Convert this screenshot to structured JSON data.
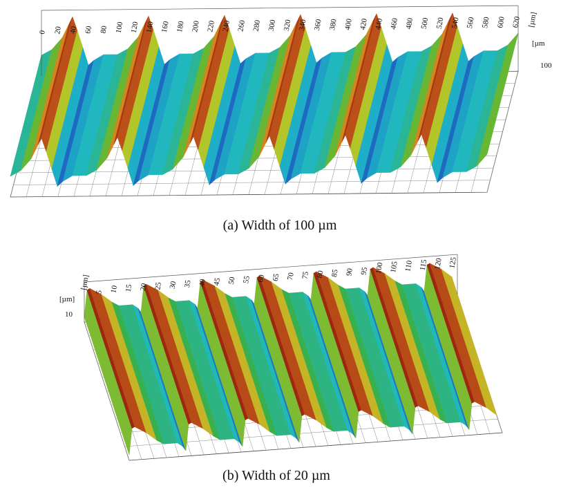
{
  "figures": [
    {
      "caption": "(a)  Width of 100 µm",
      "x_unit": "[µm]",
      "z_unit": "[µm",
      "z_tick": "100",
      "x_ticks": [
        "0",
        "20",
        "40",
        "60",
        "80",
        "100",
        "120",
        "140",
        "160",
        "180",
        "200",
        "220",
        "240",
        "260",
        "280",
        "300",
        "320",
        "340",
        "360",
        "380",
        "400",
        "420",
        "440",
        "460",
        "480",
        "500",
        "520",
        "540",
        "560",
        "580",
        "600",
        "620"
      ]
    },
    {
      "caption": "(b) Width of 20 µm",
      "x_unit": "[µm]",
      "z_unit": "[µm]",
      "z_tick": "10",
      "x_ticks": [
        "5",
        "10",
        "15",
        "20",
        "25",
        "30",
        "35",
        "40",
        "45",
        "50",
        "55",
        "60",
        "65",
        "70",
        "75",
        "80",
        "85",
        "90",
        "95",
        "100",
        "105",
        "110",
        "115",
        "120",
        "125"
      ]
    }
  ]
}
